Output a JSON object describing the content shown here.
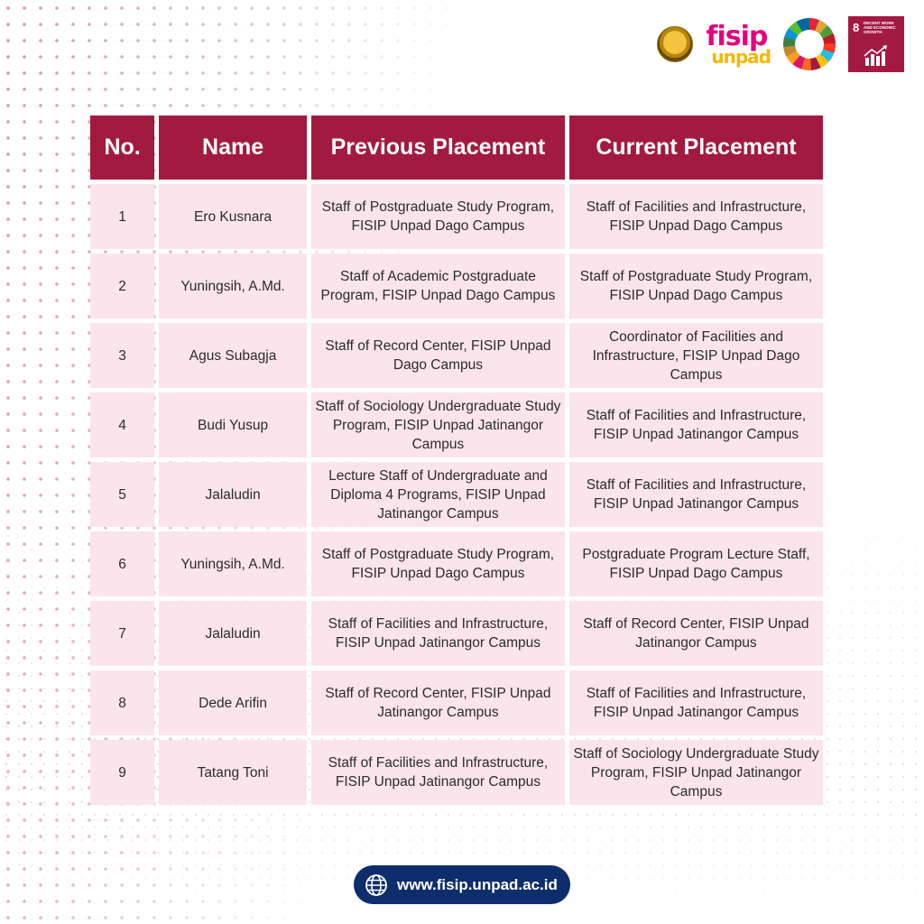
{
  "header": {
    "logo_fisip_line1": "fisip",
    "logo_fisip_line2": "unpad",
    "sdg8_number": "8",
    "sdg8_title": "DECENT WORK AND ECONOMIC GROWTH"
  },
  "table": {
    "columns": [
      "No.",
      "Name",
      "Previous Placement",
      "Current Placement"
    ],
    "rows": [
      {
        "no": "1",
        "name": "Ero Kusnara",
        "previous": "Staff of Postgraduate Study Program, FISIP Unpad Dago Campus",
        "current": "Staff of Facilities and Infrastructure, FISIP Unpad Dago Campus"
      },
      {
        "no": "2",
        "name": "Yuningsih, A.Md.",
        "previous": "Staff of Academic Postgraduate Program, FISIP Unpad Dago Campus",
        "current": "Staff of Postgraduate Study Program, FISIP Unpad Dago Campus"
      },
      {
        "no": "3",
        "name": "Agus Subagja",
        "previous": "Staff of Record Center, FISIP Unpad Dago Campus",
        "current": "Coordinator of Facilities and Infrastructure, FISIP Unpad Dago Campus"
      },
      {
        "no": "4",
        "name": "Budi Yusup",
        "previous": "Staff of Sociology Undergraduate Study Program, FISIP Unpad Jatinangor Campus",
        "current": "Staff of Facilities and Infrastructure, FISIP Unpad Jatinangor Campus"
      },
      {
        "no": "5",
        "name": "Jalaludin",
        "previous": "Lecture Staff of Undergraduate and Diploma 4 Programs, FISIP Unpad Jatinangor Campus",
        "current": "Staff of Facilities and Infrastructure, FISIP Unpad Jatinangor Campus"
      },
      {
        "no": "6",
        "name": "Yuningsih, A.Md.",
        "previous": "Staff of Postgraduate Study Program, FISIP Unpad Dago Campus",
        "current": "Postgraduate Program Lecture Staff, FISIP Unpad Dago Campus"
      },
      {
        "no": "7",
        "name": "Jalaludin",
        "previous": "Staff of Facilities and Infrastructure, FISIP Unpad Jatinangor Campus",
        "current": "Staff of Record Center, FISIP Unpad Jatinangor Campus"
      },
      {
        "no": "8",
        "name": "Dede Arifin",
        "previous": "Staff of Record Center, FISIP Unpad Jatinangor Campus",
        "current": "Staff of Facilities and Infrastructure, FISIP Unpad Jatinangor Campus"
      },
      {
        "no": "9",
        "name": "Tatang Toni",
        "previous": "Staff of Facilities and Infrastructure, FISIP Unpad Jatinangor Campus",
        "current": "Staff of Sociology Undergraduate Study Program, FISIP Unpad Jatinangor Campus"
      }
    ]
  },
  "footer": {
    "url": "www.fisip.unpad.ac.id",
    "icon": "globe-icon"
  },
  "colors": {
    "header_bg": "#a31a40",
    "cell_bg": "#fce4ec",
    "footer_bg": "#0d2d6c"
  }
}
